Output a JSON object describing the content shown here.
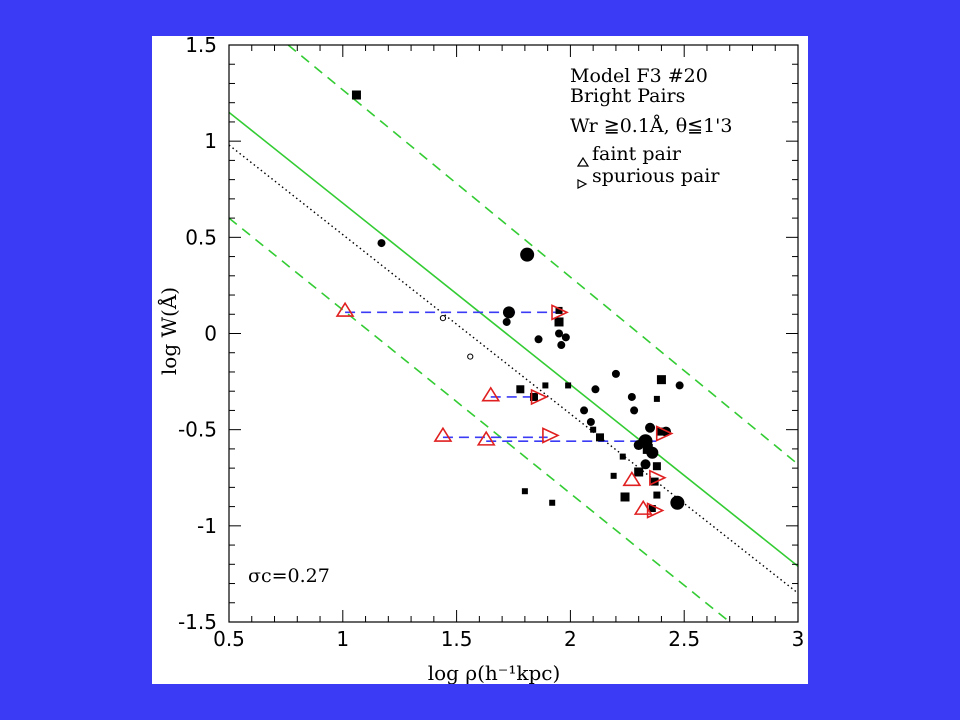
{
  "chart_data": {
    "type": "scatter",
    "xlabel": "log ρ(h⁻¹kpc)",
    "ylabel": "log W(Å)",
    "xlim": [
      0.5,
      3
    ],
    "ylim": [
      -1.5,
      1.5
    ],
    "xticks": [
      0.5,
      1,
      1.5,
      2,
      2.5,
      3
    ],
    "xtick_labels": [
      "0.5",
      "1",
      "1.5",
      "2",
      "2.5",
      "3"
    ],
    "yticks": [
      1.5,
      1,
      0.5,
      0,
      -0.5,
      -1,
      -1.5
    ],
    "ytick_labels": [
      "1.5",
      "1",
      "0.5",
      "0",
      "-0.5",
      "-1",
      "-1.5"
    ],
    "annotations": {
      "title_line1": "Model F3 #20",
      "title_line2": "Bright Pairs",
      "criteria": "Wr ≧0.1Å, θ≦1'3",
      "legend_faint": "faint pair",
      "legend_spurious": "spurious pair",
      "sigma": "σc=0.27"
    },
    "lines": [
      {
        "style": "solid",
        "color": "#33cc33",
        "x": [
          0.5,
          3
        ],
        "y": [
          1.15,
          -1.21
        ]
      },
      {
        "style": "dashed",
        "color": "#33cc33",
        "x": [
          0.76,
          3
        ],
        "y": [
          1.5,
          -0.68
        ]
      },
      {
        "style": "dashed",
        "color": "#33cc33",
        "x": [
          0.5,
          2.7
        ],
        "y": [
          0.6,
          -1.5
        ]
      },
      {
        "style": "dotted",
        "color": "#000000",
        "x": [
          0.5,
          3
        ],
        "y": [
          0.98,
          -1.35
        ]
      }
    ],
    "pair_links": [
      {
        "x": [
          1.01,
          1.95
        ],
        "y": [
          0.11,
          0.11
        ]
      },
      {
        "x": [
          1.65,
          1.85
        ],
        "y": [
          -0.33,
          -0.33
        ]
      },
      {
        "x": [
          1.44,
          1.9
        ],
        "y": [
          -0.54,
          -0.54
        ]
      },
      {
        "x": [
          1.63,
          2.38
        ],
        "y": [
          -0.56,
          -0.56
        ]
      }
    ],
    "squares": [
      {
        "x": 1.06,
        "y": 1.24,
        "s": 9
      },
      {
        "x": 1.95,
        "y": 0.06,
        "s": 9
      },
      {
        "x": 1.95,
        "y": 0.12,
        "s": 7
      },
      {
        "x": 1.78,
        "y": -0.29,
        "s": 8
      },
      {
        "x": 1.84,
        "y": -0.33,
        "s": 8
      },
      {
        "x": 1.89,
        "y": -0.27,
        "s": 6
      },
      {
        "x": 1.99,
        "y": -0.27,
        "s": 6
      },
      {
        "x": 2.13,
        "y": -0.54,
        "s": 8
      },
      {
        "x": 2.1,
        "y": -0.5,
        "s": 6
      },
      {
        "x": 2.19,
        "y": -0.74,
        "s": 6
      },
      {
        "x": 2.23,
        "y": -0.64,
        "s": 6
      },
      {
        "x": 2.3,
        "y": -0.72,
        "s": 9
      },
      {
        "x": 2.34,
        "y": -0.6,
        "s": 10
      },
      {
        "x": 2.38,
        "y": -0.69,
        "s": 8
      },
      {
        "x": 2.38,
        "y": -0.84,
        "s": 7
      },
      {
        "x": 2.4,
        "y": -0.51,
        "s": 8
      },
      {
        "x": 2.4,
        "y": -0.24,
        "s": 9
      },
      {
        "x": 2.38,
        "y": -0.34,
        "s": 6
      },
      {
        "x": 2.24,
        "y": -0.85,
        "s": 9
      },
      {
        "x": 1.8,
        "y": -0.82,
        "s": 6
      },
      {
        "x": 1.92,
        "y": -0.88,
        "s": 6
      },
      {
        "x": 2.36,
        "y": -0.91,
        "s": 7
      },
      {
        "x": 2.37,
        "y": -0.77,
        "s": 8
      }
    ],
    "dots": [
      {
        "x": 1.17,
        "y": 0.47,
        "r": 4
      },
      {
        "x": 1.81,
        "y": 0.41,
        "r": 7
      },
      {
        "x": 1.73,
        "y": 0.11,
        "r": 6
      },
      {
        "x": 1.72,
        "y": 0.06,
        "r": 4
      },
      {
        "x": 1.95,
        "y": 0.0,
        "r": 4
      },
      {
        "x": 1.98,
        "y": -0.02,
        "r": 4
      },
      {
        "x": 1.86,
        "y": -0.03,
        "r": 4
      },
      {
        "x": 1.96,
        "y": -0.06,
        "r": 4
      },
      {
        "x": 2.2,
        "y": -0.21,
        "r": 4
      },
      {
        "x": 2.11,
        "y": -0.29,
        "r": 4
      },
      {
        "x": 2.27,
        "y": -0.33,
        "r": 4
      },
      {
        "x": 2.28,
        "y": -0.4,
        "r": 4
      },
      {
        "x": 2.48,
        "y": -0.27,
        "r": 4
      },
      {
        "x": 2.06,
        "y": -0.4,
        "r": 4
      },
      {
        "x": 2.09,
        "y": -0.46,
        "r": 4
      },
      {
        "x": 2.35,
        "y": -0.49,
        "r": 5
      },
      {
        "x": 2.42,
        "y": -0.51,
        "r": 5
      },
      {
        "x": 2.33,
        "y": -0.56,
        "r": 7
      },
      {
        "x": 2.36,
        "y": -0.62,
        "r": 6
      },
      {
        "x": 2.33,
        "y": -0.68,
        "r": 5
      },
      {
        "x": 2.47,
        "y": -0.88,
        "r": 7
      },
      {
        "x": 2.3,
        "y": -0.58,
        "r": 5
      }
    ],
    "open_circles": [
      {
        "x": 1.44,
        "y": 0.08
      },
      {
        "x": 1.56,
        "y": -0.12
      }
    ],
    "faint_pairs": [
      {
        "x": 1.01,
        "y": 0.12
      },
      {
        "x": 1.65,
        "y": -0.32
      },
      {
        "x": 1.44,
        "y": -0.53
      },
      {
        "x": 1.63,
        "y": -0.55
      },
      {
        "x": 2.27,
        "y": -0.76
      },
      {
        "x": 2.32,
        "y": -0.91
      }
    ],
    "spurious_pairs": [
      {
        "x": 1.95,
        "y": 0.11
      },
      {
        "x": 1.86,
        "y": -0.33
      },
      {
        "x": 1.91,
        "y": -0.53
      },
      {
        "x": 2.41,
        "y": -0.52
      },
      {
        "x": 2.38,
        "y": -0.75
      },
      {
        "x": 2.37,
        "y": -0.92
      }
    ]
  }
}
